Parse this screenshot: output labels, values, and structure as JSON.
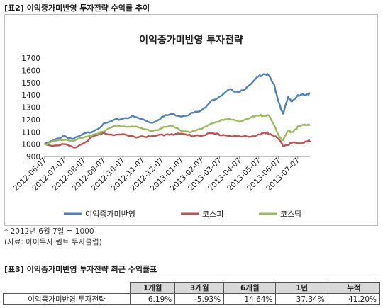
{
  "caption_top": "[표2] 이익증가미반영 투자전략 수익률 추이",
  "caption_bottom": "[표3] 이익증가미반영 투자전략 최근 수익률표",
  "note1": "* 2012년 6월 7일 = 1000",
  "note2": "(자료: 아이투자 퀀트 투자클럽)",
  "table": {
    "headers": [
      "",
      "1개월",
      "3개월",
      "6개월",
      "1년",
      "누적"
    ],
    "rows": [
      [
        "이익증가미반영 투자전략",
        "6.19%",
        "-5.93%",
        "14.64%",
        "37.34%",
        "41.20%"
      ]
    ]
  },
  "chart_data": {
    "type": "line",
    "title": "이익증가미반영 투자전략",
    "ylim": [
      900,
      1700
    ],
    "yticks": [
      "1700",
      "1600",
      "1500",
      "1400",
      "1300",
      "1200",
      "1100",
      "1000",
      "900"
    ],
    "x_tick_labels": [
      "2012-06-07",
      "2012-07-07",
      "2012-08-07",
      "2012-09-07",
      "2012-10-07",
      "2012-11-07",
      "2012-12-07",
      "2013-01-07",
      "2013-02-07",
      "2013-03-07",
      "2013-04-07",
      "2013-05-07",
      "2013-06-07",
      "2013-07-07"
    ],
    "x": [
      "2012-06-07",
      "2012-06-22",
      "2012-07-07",
      "2012-07-22",
      "2012-08-07",
      "2012-08-22",
      "2012-09-07",
      "2012-09-22",
      "2012-10-07",
      "2012-10-22",
      "2012-11-07",
      "2012-11-22",
      "2012-12-07",
      "2012-12-22",
      "2013-01-07",
      "2013-01-22",
      "2013-02-07",
      "2013-02-22",
      "2013-03-07",
      "2013-03-22",
      "2013-04-07",
      "2013-04-22",
      "2013-05-07",
      "2013-05-15",
      "2013-05-22",
      "2013-05-31",
      "2013-06-07",
      "2013-06-14",
      "2013-06-22",
      "2013-06-28",
      "2013-07-07",
      "2013-07-15",
      "2013-07-22",
      "2013-07-26"
    ],
    "series": [
      {
        "name": "이익증가미반영",
        "color": "#4f81bd",
        "values": [
          1000,
          1030,
          1070,
          1040,
          1080,
          1110,
          1160,
          1190,
          1210,
          1225,
          1200,
          1175,
          1220,
          1245,
          1230,
          1250,
          1270,
          1360,
          1380,
          1440,
          1430,
          1470,
          1550,
          1575,
          1560,
          1480,
          1350,
          1240,
          1380,
          1350,
          1390,
          1400,
          1410,
          1412
        ]
      },
      {
        "name": "코스피",
        "color": "#c0504d",
        "values": [
          1000,
          990,
          1000,
          970,
          1010,
          1060,
          1090,
          1080,
          1075,
          1060,
          1065,
          1060,
          1075,
          1085,
          1080,
          1070,
          1075,
          1085,
          1080,
          1070,
          1060,
          1060,
          1080,
          1085,
          1090,
          1070,
          1040,
          990,
          1000,
          1010,
          1010,
          1015,
          1020,
          1030
        ]
      },
      {
        "name": "코스닥",
        "color": "#9bbb59",
        "values": [
          1000,
          1020,
          1040,
          1030,
          1050,
          1080,
          1110,
          1140,
          1150,
          1145,
          1120,
          1110,
          1130,
          1145,
          1110,
          1100,
          1120,
          1170,
          1190,
          1200,
          1190,
          1210,
          1230,
          1235,
          1240,
          1150,
          1080,
          1030,
          1110,
          1100,
          1140,
          1150,
          1160,
          1162
        ]
      }
    ]
  }
}
